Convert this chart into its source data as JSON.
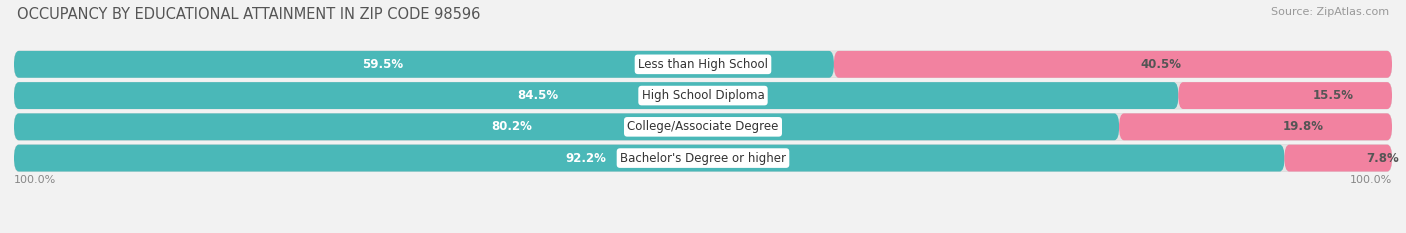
{
  "title": "OCCUPANCY BY EDUCATIONAL ATTAINMENT IN ZIP CODE 98596",
  "source": "Source: ZipAtlas.com",
  "categories": [
    "Less than High School",
    "High School Diploma",
    "College/Associate Degree",
    "Bachelor's Degree or higher"
  ],
  "owner_pct": [
    59.5,
    84.5,
    80.2,
    92.2
  ],
  "renter_pct": [
    40.5,
    15.5,
    19.8,
    7.8
  ],
  "owner_color": "#4ab8b8",
  "renter_color": "#f282a0",
  "bg_color": "#f2f2f2",
  "bar_bg_color": "#e8e8e8",
  "title_fontsize": 10.5,
  "source_fontsize": 8,
  "cat_fontsize": 8.5,
  "pct_fontsize": 8.5,
  "legend_fontsize": 9,
  "axis_label_fontsize": 8
}
